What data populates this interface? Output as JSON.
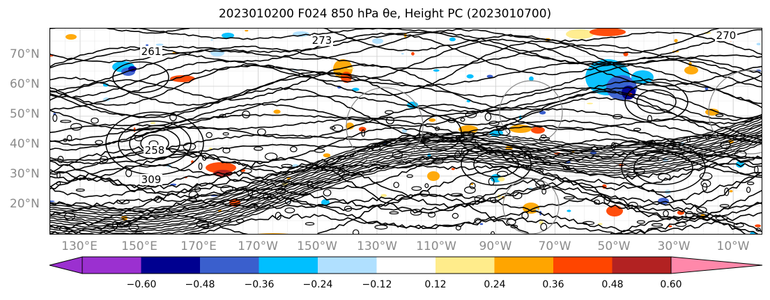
{
  "title": "2023010200 F024 850 hPa θe, Height PC (2023010700)",
  "latitude_labels": [
    "70°N",
    "60°N",
    "50°N",
    "40°N",
    "30°N",
    "20°N"
  ],
  "longitude_labels": [
    "130°E",
    "150°E",
    "170°E",
    "170°W",
    "150°W",
    "130°W",
    "110°W",
    "90°W",
    "70°W",
    "50°W",
    "30°W",
    "10°W"
  ],
  "contour_labels": [
    "273",
    "261",
    "309",
    "258",
    "270"
  ],
  "colorbar": {
    "ticks": [
      "−0.60",
      "−0.48",
      "−0.36",
      "−0.24",
      "−0.12",
      "0.12",
      "0.24",
      "0.36",
      "0.48",
      "0.60"
    ],
    "colors": [
      "#9b30d0",
      "#000090",
      "#3a5fcd",
      "#00bfff",
      "#b0e0ff",
      "#ffffff",
      "#ffec8b",
      "#ffa500",
      "#ff4500",
      "#b22222",
      "#ff88aa"
    ]
  },
  "legend": {
    "colors": {
      "contour": "#000000",
      "grid": "#bbbbbb",
      "frame": "#000000"
    }
  }
}
